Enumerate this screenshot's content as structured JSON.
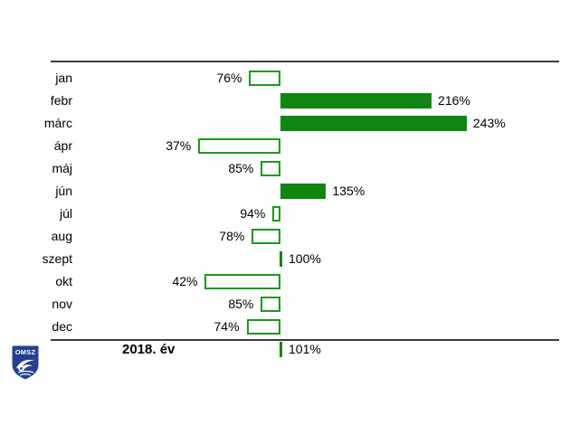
{
  "chart_data": {
    "type": "bar",
    "orientation": "horizontal-diverging",
    "title": "",
    "unit": "%",
    "baseline_value": 100,
    "xlim": [
      0,
      250
    ],
    "grid": false,
    "legend": "none",
    "categories": [
      "jan",
      "febr",
      "márc",
      "ápr",
      "máj",
      "jún",
      "júl",
      "aug",
      "szept",
      "okt",
      "nov",
      "dec"
    ],
    "values": [
      76,
      216,
      243,
      37,
      85,
      135,
      94,
      78,
      100,
      42,
      85,
      74
    ],
    "value_labels": [
      "76%",
      "216%",
      "243%",
      "37%",
      "85%",
      "135%",
      "94%",
      "78%",
      "100%",
      "42%",
      "85%",
      "74%"
    ],
    "summary_row": {
      "label": "2018. év",
      "value": 101,
      "value_label": "101%"
    },
    "style_note": "values below 100% drawn as white bars with green outline extending left to baseline; values at/above 100% drawn as solid green bars extending right from baseline",
    "colors": {
      "bar_fill": "#118511",
      "bar_outline": "#1b9a1b",
      "axis_line": "#3c3c44",
      "text": "#000000"
    }
  },
  "logo": {
    "text": "OMSZ",
    "shield_color": "#24418e",
    "text_color": "#ffffff"
  }
}
